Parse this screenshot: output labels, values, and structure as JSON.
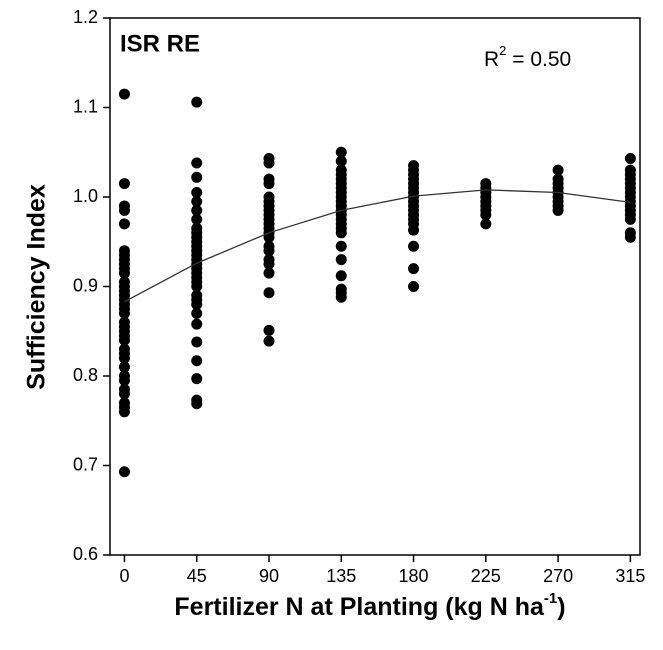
{
  "chart_data": {
    "type": "scatter",
    "panel_label": "ISR RE",
    "annotation": {
      "base": "R",
      "sup": "2",
      "rest": " = 0.50"
    },
    "ylabel": "Sufficiency Index",
    "xlabel": {
      "text": "Fertilizer N at Planting (kg N ha",
      "sup": "-1",
      "end": ")"
    },
    "xlim": [
      -9,
      321
    ],
    "ylim": [
      0.6,
      1.2
    ],
    "xticks": [
      0,
      45,
      90,
      135,
      180,
      225,
      270,
      315
    ],
    "yticks": [
      0.6,
      0.7,
      0.8,
      0.9,
      {
        "value": 1,
        "label": "1.0"
      },
      1.1,
      1.2
    ],
    "color": "#000000",
    "series": [
      {
        "x": 0,
        "values": [
          1.115,
          1.015,
          0.99,
          0.985,
          0.97,
          0.94,
          0.935,
          0.93,
          0.925,
          0.92,
          0.915,
          0.905,
          0.9,
          0.895,
          0.89,
          0.885,
          0.88,
          0.875,
          0.87,
          0.86,
          0.855,
          0.85,
          0.845,
          0.84,
          0.83,
          0.825,
          0.82,
          0.81,
          0.8,
          0.795,
          0.785,
          0.78,
          0.77,
          0.765,
          0.76,
          0.693
        ]
      },
      {
        "x": 45,
        "values": [
          1.106,
          1.038,
          1.022,
          1.005,
          0.995,
          0.985,
          0.975,
          0.965,
          0.96,
          0.955,
          0.95,
          0.945,
          0.94,
          0.935,
          0.93,
          0.925,
          0.92,
          0.915,
          0.91,
          0.905,
          0.9,
          0.89,
          0.885,
          0.88,
          0.87,
          0.858,
          0.838,
          0.817,
          0.797,
          0.773,
          0.769
        ]
      },
      {
        "x": 90,
        "values": [
          1.043,
          1.038,
          1.02,
          1.015,
          1.0,
          0.995,
          0.99,
          0.985,
          0.98,
          0.975,
          0.97,
          0.965,
          0.96,
          0.955,
          0.945,
          0.94,
          0.93,
          0.925,
          0.915,
          0.893,
          0.851,
          0.839
        ]
      },
      {
        "x": 135,
        "values": [
          1.05,
          1.04,
          1.03,
          1.025,
          1.02,
          1.015,
          1.01,
          1.005,
          1.0,
          0.995,
          0.99,
          0.985,
          0.98,
          0.975,
          0.97,
          0.965,
          0.96,
          0.945,
          0.93,
          0.912,
          0.897,
          0.893,
          0.888
        ]
      },
      {
        "x": 180,
        "values": [
          1.035,
          1.03,
          1.025,
          1.02,
          1.015,
          1.01,
          1.005,
          1.0,
          0.995,
          0.99,
          0.985,
          0.98,
          0.975,
          0.97,
          0.963,
          0.945,
          0.92,
          0.9
        ]
      },
      {
        "x": 225,
        "values": [
          1.015,
          1.01,
          1.005,
          1.0,
          0.995,
          0.99,
          0.985,
          0.98,
          0.97
        ]
      },
      {
        "x": 270,
        "values": [
          1.03,
          1.02,
          1.015,
          1.01,
          1.005,
          1.0,
          0.995,
          0.99,
          0.985
        ]
      },
      {
        "x": 315,
        "values": [
          1.043,
          1.03,
          1.025,
          1.02,
          1.015,
          1.01,
          1.005,
          1.0,
          0.995,
          0.99,
          0.985,
          0.98,
          0.975,
          0.96,
          0.955
        ]
      }
    ],
    "fit": {
      "x": [
        0,
        45,
        90,
        135,
        180,
        225,
        270,
        315
      ],
      "values": [
        0.883,
        0.926,
        0.96,
        0.985,
        1.001,
        1.008,
        1.005,
        0.994
      ]
    }
  }
}
